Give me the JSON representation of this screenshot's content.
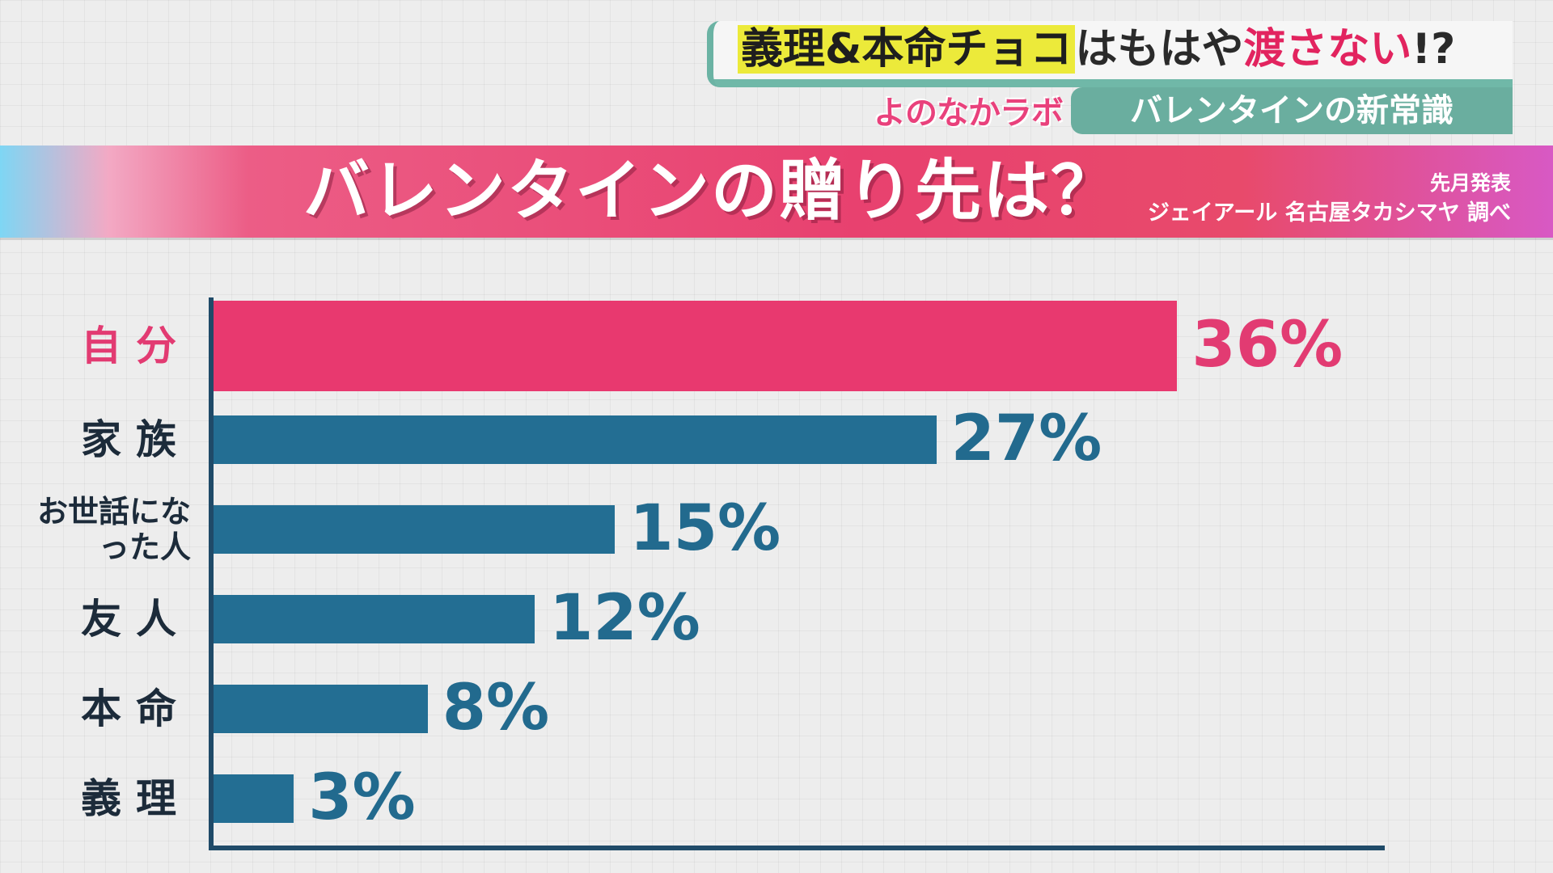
{
  "headline": {
    "part1": "義理&本命チョコ",
    "part2": "はもはや",
    "part3": "渡さない",
    "part4": "!?"
  },
  "show_logo": "よのなかラボ",
  "segment_title": "バレンタインの新常識",
  "banner": {
    "title": "バレンタインの贈り先は？",
    "date": "先月発表",
    "source": "ジェイアール 名古屋タカシマヤ 調べ"
  },
  "colors": {
    "highlight_bar": "#e8396f",
    "bar": "#236e93",
    "highlight_text": "#e23b72",
    "value_text": "#226a8e",
    "axis": "#1f4a68"
  },
  "chart_data": {
    "type": "bar",
    "orientation": "horizontal",
    "title": "バレンタインの贈り先は？",
    "categories": [
      "自分",
      "家族",
      "お世話になった人",
      "友人",
      "本命",
      "義理"
    ],
    "values": [
      36,
      27,
      15,
      12,
      8,
      3
    ],
    "value_labels": [
      "36%",
      "27%",
      "15%",
      "12%",
      "8%",
      "3%"
    ],
    "unit": "%",
    "xlim": [
      0,
      42
    ],
    "highlight_index": 0,
    "grid": false,
    "legend": "none"
  }
}
